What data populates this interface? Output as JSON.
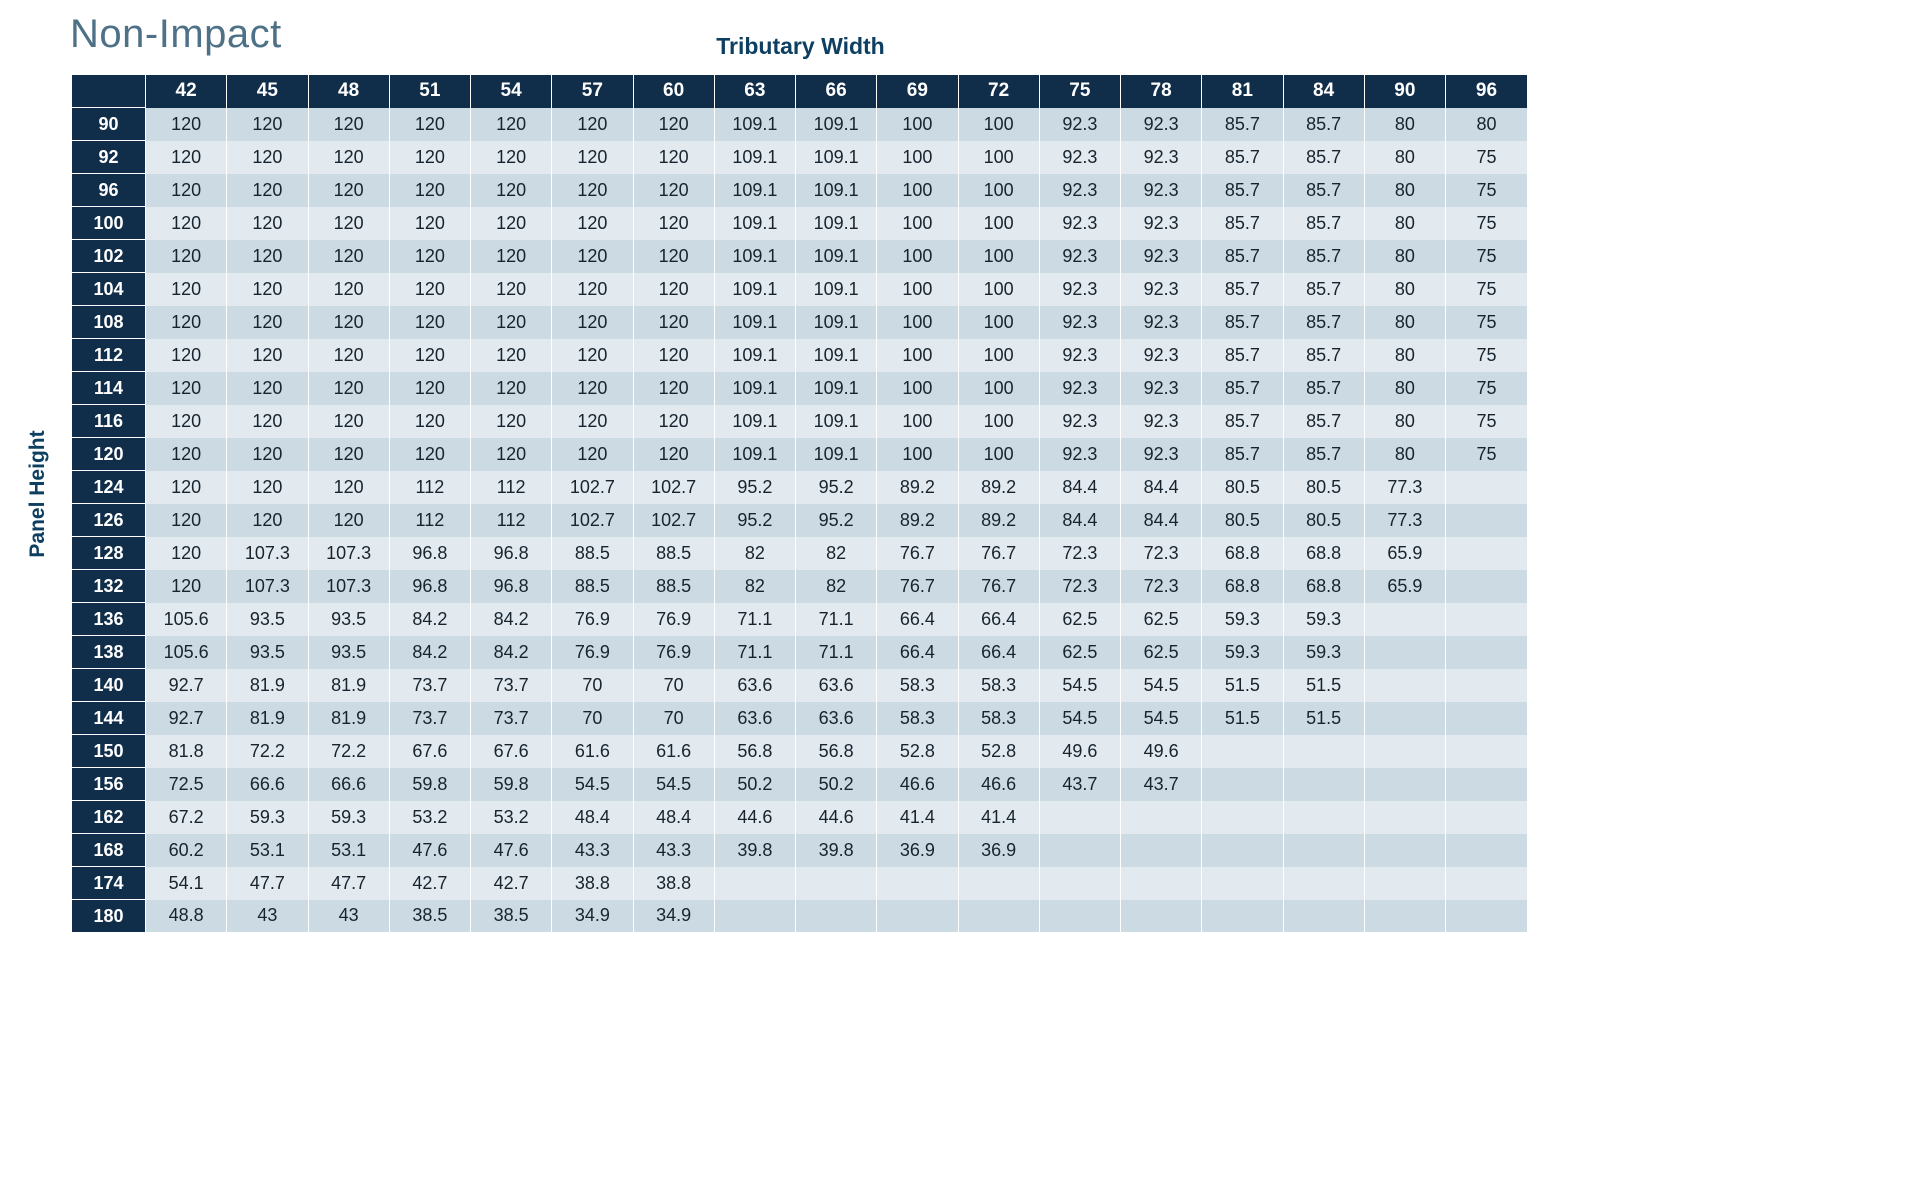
{
  "title": "Non-Impact",
  "column_group_label": "Tributary Width",
  "row_group_label": "Panel Height",
  "colors": {
    "header_navy": "#102e4a",
    "row_dark": "#ccdae3",
    "row_light": "#e2e9ef",
    "title_steel_blue": "#4e7187",
    "label_navy": "#0d3f61",
    "cell_text": "#17242e"
  },
  "chart_data": {
    "type": "table",
    "title": "Non-Impact",
    "xlabel": "Tributary Width",
    "ylabel": "Panel Height",
    "columns": [
      "42",
      "45",
      "48",
      "51",
      "54",
      "57",
      "60",
      "63",
      "66",
      "69",
      "72",
      "75",
      "78",
      "81",
      "84",
      "90",
      "96"
    ],
    "rows": [
      {
        "height": "90",
        "values": [
          120,
          120,
          120,
          120,
          120,
          120,
          120,
          109.1,
          109.1,
          100,
          100,
          92.3,
          92.3,
          85.7,
          85.7,
          80,
          80
        ]
      },
      {
        "height": "92",
        "values": [
          120,
          120,
          120,
          120,
          120,
          120,
          120,
          109.1,
          109.1,
          100,
          100,
          92.3,
          92.3,
          85.7,
          85.7,
          80,
          75
        ]
      },
      {
        "height": "96",
        "values": [
          120,
          120,
          120,
          120,
          120,
          120,
          120,
          109.1,
          109.1,
          100,
          100,
          92.3,
          92.3,
          85.7,
          85.7,
          80,
          75
        ]
      },
      {
        "height": "100",
        "values": [
          120,
          120,
          120,
          120,
          120,
          120,
          120,
          109.1,
          109.1,
          100,
          100,
          92.3,
          92.3,
          85.7,
          85.7,
          80,
          75
        ]
      },
      {
        "height": "102",
        "values": [
          120,
          120,
          120,
          120,
          120,
          120,
          120,
          109.1,
          109.1,
          100,
          100,
          92.3,
          92.3,
          85.7,
          85.7,
          80,
          75
        ]
      },
      {
        "height": "104",
        "values": [
          120,
          120,
          120,
          120,
          120,
          120,
          120,
          109.1,
          109.1,
          100,
          100,
          92.3,
          92.3,
          85.7,
          85.7,
          80,
          75
        ]
      },
      {
        "height": "108",
        "values": [
          120,
          120,
          120,
          120,
          120,
          120,
          120,
          109.1,
          109.1,
          100,
          100,
          92.3,
          92.3,
          85.7,
          85.7,
          80,
          75
        ]
      },
      {
        "height": "112",
        "values": [
          120,
          120,
          120,
          120,
          120,
          120,
          120,
          109.1,
          109.1,
          100,
          100,
          92.3,
          92.3,
          85.7,
          85.7,
          80,
          75
        ]
      },
      {
        "height": "114",
        "values": [
          120,
          120,
          120,
          120,
          120,
          120,
          120,
          109.1,
          109.1,
          100,
          100,
          92.3,
          92.3,
          85.7,
          85.7,
          80,
          75
        ]
      },
      {
        "height": "116",
        "values": [
          120,
          120,
          120,
          120,
          120,
          120,
          120,
          109.1,
          109.1,
          100,
          100,
          92.3,
          92.3,
          85.7,
          85.7,
          80,
          75
        ]
      },
      {
        "height": "120",
        "values": [
          120,
          120,
          120,
          120,
          120,
          120,
          120,
          109.1,
          109.1,
          100,
          100,
          92.3,
          92.3,
          85.7,
          85.7,
          80,
          75
        ]
      },
      {
        "height": "124",
        "values": [
          120,
          120,
          120,
          112,
          112,
          102.7,
          102.7,
          95.2,
          95.2,
          89.2,
          89.2,
          84.4,
          84.4,
          80.5,
          80.5,
          77.3,
          ""
        ]
      },
      {
        "height": "126",
        "values": [
          120,
          120,
          120,
          112,
          112,
          102.7,
          102.7,
          95.2,
          95.2,
          89.2,
          89.2,
          84.4,
          84.4,
          80.5,
          80.5,
          77.3,
          ""
        ]
      },
      {
        "height": "128",
        "values": [
          120,
          107.3,
          107.3,
          96.8,
          96.8,
          88.5,
          88.5,
          82,
          82,
          76.7,
          76.7,
          72.3,
          72.3,
          68.8,
          68.8,
          65.9,
          ""
        ]
      },
      {
        "height": "132",
        "values": [
          120,
          107.3,
          107.3,
          96.8,
          96.8,
          88.5,
          88.5,
          82,
          82,
          76.7,
          76.7,
          72.3,
          72.3,
          68.8,
          68.8,
          65.9,
          ""
        ]
      },
      {
        "height": "136",
        "values": [
          105.6,
          93.5,
          93.5,
          84.2,
          84.2,
          76.9,
          76.9,
          71.1,
          71.1,
          66.4,
          66.4,
          62.5,
          62.5,
          59.3,
          59.3,
          "",
          ""
        ]
      },
      {
        "height": "138",
        "values": [
          105.6,
          93.5,
          93.5,
          84.2,
          84.2,
          76.9,
          76.9,
          71.1,
          71.1,
          66.4,
          66.4,
          62.5,
          62.5,
          59.3,
          59.3,
          "",
          ""
        ]
      },
      {
        "height": "140",
        "values": [
          92.7,
          81.9,
          81.9,
          73.7,
          73.7,
          70,
          70,
          63.6,
          63.6,
          58.3,
          58.3,
          54.5,
          54.5,
          51.5,
          51.5,
          "",
          ""
        ]
      },
      {
        "height": "144",
        "values": [
          92.7,
          81.9,
          81.9,
          73.7,
          73.7,
          70,
          70,
          63.6,
          63.6,
          58.3,
          58.3,
          54.5,
          54.5,
          51.5,
          51.5,
          "",
          ""
        ]
      },
      {
        "height": "150",
        "values": [
          81.8,
          72.2,
          72.2,
          67.6,
          67.6,
          61.6,
          61.6,
          56.8,
          56.8,
          52.8,
          52.8,
          49.6,
          49.6,
          "",
          "",
          "",
          ""
        ]
      },
      {
        "height": "156",
        "values": [
          72.5,
          66.6,
          66.6,
          59.8,
          59.8,
          54.5,
          54.5,
          50.2,
          50.2,
          46.6,
          46.6,
          43.7,
          43.7,
          "",
          "",
          "",
          ""
        ]
      },
      {
        "height": "162",
        "values": [
          67.2,
          59.3,
          59.3,
          53.2,
          53.2,
          48.4,
          48.4,
          44.6,
          44.6,
          41.4,
          41.4,
          "",
          "",
          "",
          "",
          "",
          ""
        ]
      },
      {
        "height": "168",
        "values": [
          60.2,
          53.1,
          53.1,
          47.6,
          47.6,
          43.3,
          43.3,
          39.8,
          39.8,
          36.9,
          36.9,
          "",
          "",
          "",
          "",
          "",
          ""
        ]
      },
      {
        "height": "174",
        "values": [
          54.1,
          47.7,
          47.7,
          42.7,
          42.7,
          38.8,
          38.8,
          "",
          "",
          "",
          "",
          "",
          "",
          "",
          "",
          "",
          ""
        ]
      },
      {
        "height": "180",
        "values": [
          48.8,
          43,
          43,
          38.5,
          38.5,
          34.9,
          34.9,
          "",
          "",
          "",
          "",
          "",
          "",
          "",
          "",
          "",
          ""
        ]
      }
    ]
  }
}
